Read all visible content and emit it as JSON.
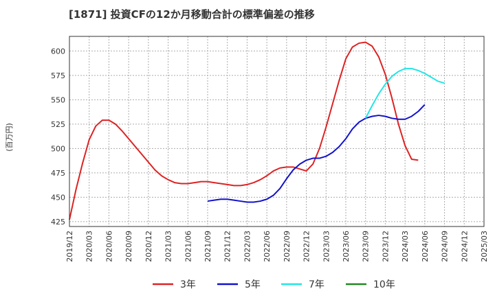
{
  "chart_data": {
    "type": "line",
    "title": "[1871]  投資CFの12か月移動合計の標準偏差の推移",
    "ylabel": "(百万円)",
    "xlabel": "",
    "ylim": [
      420,
      615
    ],
    "y_ticks": [
      425,
      450,
      475,
      500,
      525,
      550,
      575,
      600
    ],
    "x_ticks": [
      "2019/12",
      "2020/03",
      "2020/06",
      "2020/09",
      "2020/12",
      "2021/03",
      "2021/06",
      "2021/09",
      "2021/12",
      "2022/03",
      "2022/06",
      "2022/09",
      "2022/12",
      "2023/03",
      "2023/06",
      "2023/09",
      "2023/12",
      "2024/03",
      "2024/06",
      "2024/09",
      "2024/12",
      "2025/03"
    ],
    "grid": true,
    "legend_position": "bottom",
    "series": [
      {
        "name": "3年",
        "color": "#dd2222",
        "start_month": "2019/12",
        "values": [
          427,
          458,
          485,
          509,
          523,
          529,
          529,
          525,
          518,
          510,
          502,
          494,
          486,
          478,
          472,
          468,
          465,
          464,
          464,
          465,
          466,
          466,
          465,
          464,
          463,
          462,
          462,
          463,
          465,
          468,
          472,
          477,
          480,
          481,
          481,
          479,
          477,
          484,
          500,
          522,
          546,
          570,
          592,
          604,
          608,
          609,
          605,
          594,
          576,
          552,
          525,
          503,
          489,
          488
        ]
      },
      {
        "name": "5年",
        "color": "#1111cc",
        "start_month": "2021/09",
        "values": [
          446,
          447,
          448,
          448,
          447,
          446,
          445,
          445,
          446,
          448,
          452,
          459,
          469,
          478,
          484,
          488,
          490,
          490,
          492,
          496,
          502,
          510,
          520,
          527,
          531,
          533,
          534,
          533,
          531,
          530,
          530,
          533,
          538,
          545
        ]
      },
      {
        "name": "7年",
        "color": "#22e5e5",
        "start_month": "2023/09",
        "values": [
          531,
          544,
          556,
          566,
          574,
          579,
          582,
          582,
          580,
          577,
          573,
          569,
          567
        ]
      },
      {
        "name": "10年",
        "color": "#228822",
        "start_month": "",
        "values": []
      }
    ]
  }
}
